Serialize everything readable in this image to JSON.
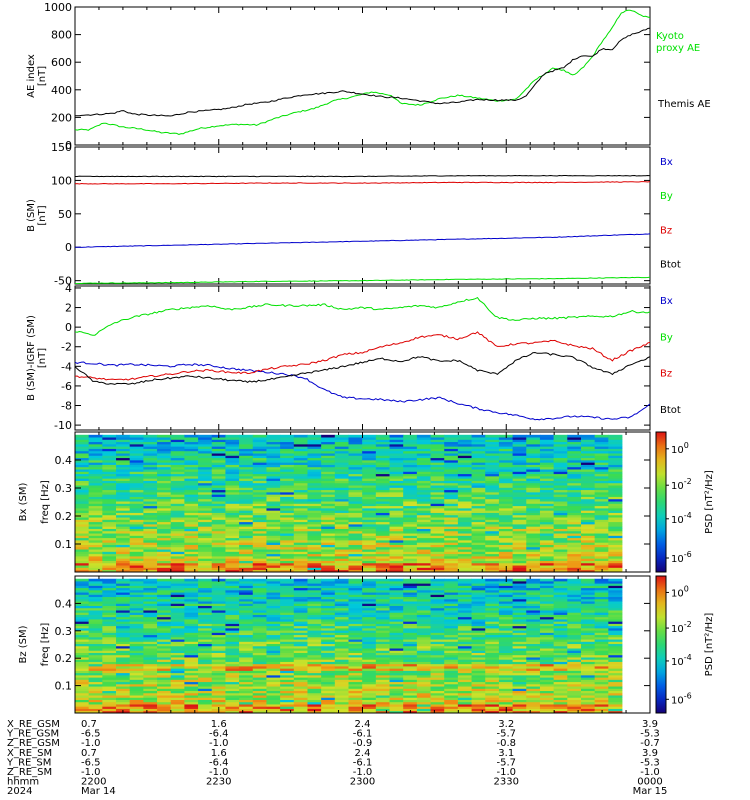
{
  "chart_data": [
    {
      "type": "line",
      "panel": "ae",
      "ylabel": "AE index",
      "yunit": "[nT]",
      "ylim": [
        0,
        1000
      ],
      "yticks": [
        "0",
        "200",
        "400",
        "600",
        "800",
        "1000"
      ],
      "xlim_min": [
        0,
        120
      ],
      "legend_placement": "right",
      "series": [
        {
          "name": "Kyoto proxy AE",
          "color": "#00e000",
          "x": [
            0,
            3,
            6,
            10,
            14,
            18,
            22,
            26,
            30,
            34,
            38,
            42,
            46,
            50,
            54,
            58,
            62,
            66,
            68,
            72,
            76,
            80,
            84,
            88,
            92,
            96,
            100,
            102,
            104,
            106,
            108,
            110,
            112,
            114,
            116,
            118,
            120
          ],
          "y": [
            110,
            110,
            160,
            130,
            115,
            90,
            80,
            120,
            140,
            150,
            145,
            195,
            235,
            265,
            320,
            350,
            385,
            360,
            300,
            290,
            335,
            360,
            340,
            320,
            330,
            470,
            560,
            540,
            500,
            560,
            640,
            750,
            840,
            960,
            980,
            940,
            920
          ]
        },
        {
          "name": "Themis AE",
          "color": "#000000",
          "x": [
            0,
            4,
            8,
            10,
            12,
            16,
            20,
            24,
            28,
            32,
            36,
            40,
            44,
            48,
            52,
            56,
            60,
            64,
            68,
            72,
            76,
            80,
            84,
            88,
            92,
            94,
            98,
            102,
            104,
            106,
            108,
            110,
            112,
            114,
            116,
            118,
            120
          ],
          "y": [
            215,
            220,
            230,
            250,
            225,
            215,
            210,
            240,
            250,
            265,
            295,
            310,
            340,
            365,
            375,
            390,
            370,
            350,
            340,
            320,
            300,
            310,
            330,
            325,
            325,
            350,
            520,
            560,
            620,
            650,
            640,
            700,
            690,
            760,
            800,
            820,
            850
          ]
        }
      ]
    },
    {
      "type": "line",
      "panel": "b-sm",
      "ylabel": "B (SM)",
      "yunit": "[nT]",
      "ylim": [
        -55,
        150
      ],
      "yticks": [
        "-50",
        "0",
        "50",
        "100",
        "150"
      ],
      "xlim_min": [
        0,
        120
      ],
      "legend_placement": "right",
      "series": [
        {
          "name": "Bx",
          "color": "#0000cc",
          "x": [
            0,
            20,
            40,
            60,
            80,
            100,
            120
          ],
          "y": [
            0,
            3,
            6,
            9,
            12,
            15,
            20
          ]
        },
        {
          "name": "By",
          "color": "#00e000",
          "x": [
            0,
            20,
            40,
            60,
            80,
            100,
            120
          ],
          "y": [
            -54,
            -53,
            -51,
            -50,
            -48,
            -47,
            -45
          ]
        },
        {
          "name": "Bz",
          "color": "#dd0000",
          "x": [
            0,
            20,
            40,
            60,
            80,
            100,
            120
          ],
          "y": [
            95,
            95,
            96,
            96,
            97,
            97,
            98
          ]
        },
        {
          "name": "Btot",
          "color": "#000000",
          "x": [
            0,
            20,
            40,
            60,
            80,
            100,
            120
          ],
          "y": [
            106,
            106,
            106,
            106,
            107,
            107,
            107
          ]
        }
      ]
    },
    {
      "type": "line",
      "panel": "b-minus-igrf",
      "ylabel": "B (SM)-IGRF (SM)",
      "yunit": "[nT]",
      "ylim": [
        -10.5,
        4.2
      ],
      "yticks": [
        "-10",
        "-8",
        "-6",
        "-4",
        "-2",
        "0",
        "2",
        "4"
      ],
      "xlim_min": [
        0,
        120
      ],
      "legend_placement": "right",
      "series": [
        {
          "name": "Bx",
          "color": "#0000cc",
          "x": [
            0,
            4,
            8,
            12,
            16,
            20,
            24,
            28,
            32,
            36,
            40,
            44,
            48,
            52,
            56,
            60,
            64,
            68,
            72,
            76,
            80,
            84,
            88,
            92,
            96,
            100,
            104,
            108,
            112,
            116,
            120
          ],
          "y": [
            -3.6,
            -3.7,
            -3.9,
            -3.8,
            -3.9,
            -4.0,
            -3.8,
            -3.9,
            -4.2,
            -4.4,
            -4.6,
            -4.8,
            -5.2,
            -6.4,
            -7.2,
            -7.3,
            -7.4,
            -7.6,
            -7.4,
            -7.2,
            -7.8,
            -8.3,
            -8.7,
            -9.0,
            -9.4,
            -9.3,
            -9.1,
            -9.2,
            -9.4,
            -9.2,
            -7.9
          ]
        },
        {
          "name": "By",
          "color": "#00e000",
          "x": [
            0,
            4,
            8,
            12,
            16,
            20,
            24,
            28,
            32,
            36,
            40,
            44,
            48,
            52,
            56,
            60,
            64,
            68,
            72,
            76,
            80,
            84,
            88,
            92,
            96,
            100,
            104,
            108,
            112,
            116,
            120
          ],
          "y": [
            -0.4,
            -0.8,
            0.4,
            1.0,
            1.4,
            1.8,
            2.0,
            2.2,
            1.8,
            2.0,
            2.3,
            2.2,
            2.2,
            2.3,
            1.8,
            2.0,
            1.8,
            2.0,
            2.2,
            2.0,
            2.6,
            3.0,
            1.0,
            0.7,
            0.9,
            0.9,
            1.0,
            1.1,
            1.1,
            1.6,
            1.5
          ]
        },
        {
          "name": "Bz",
          "color": "#dd0000",
          "x": [
            0,
            4,
            8,
            12,
            16,
            20,
            24,
            28,
            32,
            36,
            40,
            44,
            48,
            52,
            56,
            60,
            64,
            68,
            72,
            76,
            80,
            84,
            88,
            92,
            96,
            100,
            104,
            108,
            112,
            116,
            120
          ],
          "y": [
            -5.0,
            -5.2,
            -5.4,
            -5.3,
            -5.0,
            -4.8,
            -4.5,
            -4.4,
            -4.6,
            -4.7,
            -4.3,
            -4.0,
            -3.8,
            -3.4,
            -2.8,
            -2.6,
            -2.0,
            -1.6,
            -1.0,
            -0.8,
            -1.2,
            -0.5,
            -2.0,
            -1.7,
            -1.6,
            -1.4,
            -1.9,
            -2.2,
            -3.4,
            -2.4,
            -1.6
          ]
        },
        {
          "name": "Btot",
          "color": "#000000",
          "x": [
            0,
            4,
            8,
            12,
            16,
            20,
            24,
            28,
            32,
            36,
            40,
            44,
            48,
            52,
            56,
            60,
            64,
            68,
            72,
            76,
            80,
            84,
            88,
            92,
            96,
            100,
            104,
            108,
            112,
            116,
            120
          ],
          "y": [
            -4.0,
            -5.6,
            -5.8,
            -5.8,
            -5.4,
            -5.2,
            -5.0,
            -5.2,
            -5.4,
            -5.6,
            -5.4,
            -5.1,
            -4.7,
            -4.4,
            -4.0,
            -3.6,
            -3.2,
            -3.5,
            -3.0,
            -3.5,
            -3.4,
            -4.4,
            -4.8,
            -3.4,
            -2.6,
            -2.8,
            -3.1,
            -4.1,
            -4.8,
            -3.8,
            -3.1
          ]
        }
      ]
    },
    {
      "type": "heatmap",
      "panel": "bx-spectrogram",
      "ylabel": "Bx (SM)",
      "ysublabel": "freq",
      "yunit": "[Hz]",
      "ylim": [
        0,
        0.5
      ],
      "yticks": [
        "0.1",
        "0.2",
        "0.3",
        "0.4"
      ],
      "colorbar_label": "PSD [nT²/Hz]",
      "colorbar_ticks": [
        {
          "base": "10",
          "exp": "0"
        },
        {
          "base": "10",
          "exp": "-2"
        },
        {
          "base": "10",
          "exp": "-4"
        },
        {
          "base": "10",
          "exp": "-6"
        }
      ]
    },
    {
      "type": "heatmap",
      "panel": "bz-spectrogram",
      "ylabel": "Bz (SM)",
      "ysublabel": "freq",
      "yunit": "[Hz]",
      "ylim": [
        0,
        0.5
      ],
      "yticks": [
        "0.1",
        "0.2",
        "0.3",
        "0.4"
      ],
      "colorbar_label": "PSD [nT²/Hz]",
      "colorbar_ticks": [
        {
          "base": "10",
          "exp": "0"
        },
        {
          "base": "10",
          "exp": "-2"
        },
        {
          "base": "10",
          "exp": "-4"
        },
        {
          "base": "10",
          "exp": "-6"
        }
      ]
    }
  ],
  "ephemeris": {
    "labels": [
      "X_RE_GSM",
      "Y_RE_GSM",
      "Z_RE_GSM",
      "X_RE_SM",
      "Y_RE_SM",
      "Z_RE_SM",
      "hhmm",
      "2024"
    ],
    "columns": [
      {
        "t": 0,
        "values": [
          "0.7",
          "-6.5",
          "-1.0",
          "0.7",
          "-6.5",
          "-1.0",
          "2200",
          "Mar 14"
        ]
      },
      {
        "t": 30,
        "values": [
          "1.6",
          "-6.4",
          "-1.0",
          "1.6",
          "-6.4",
          "-1.0",
          "2230",
          ""
        ]
      },
      {
        "t": 60,
        "values": [
          "2.4",
          "-6.1",
          "-0.9",
          "2.4",
          "-6.1",
          "-1.0",
          "2300",
          ""
        ]
      },
      {
        "t": 90,
        "values": [
          "3.2",
          "-5.7",
          "-0.8",
          "3.1",
          "-5.7",
          "-1.0",
          "2330",
          ""
        ]
      },
      {
        "t": 120,
        "values": [
          "3.9",
          "-5.3",
          "-0.7",
          "3.9",
          "-5.3",
          "-1.0",
          "0000",
          "Mar 15"
        ]
      }
    ]
  }
}
